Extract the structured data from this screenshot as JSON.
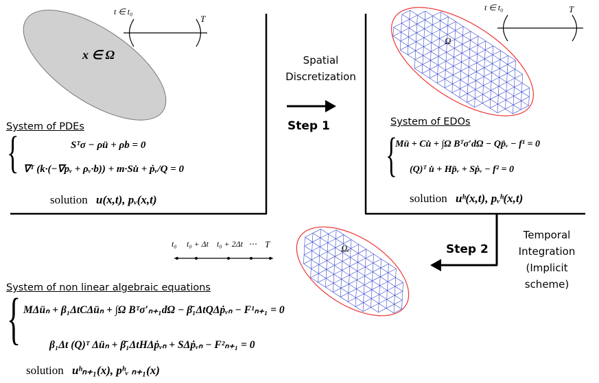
{
  "time_top_left": {
    "start": "t ∈ t₀",
    "end": "T"
  },
  "domain_label": "x ∈ Ω",
  "mesh_label_top": "Ω",
  "time_top_right": {
    "start": "t ∈ t₀",
    "end": "T"
  },
  "spatial": {
    "line1": "Spatial",
    "line2": "Discretization",
    "step": "Step 1"
  },
  "pdes": {
    "title": "System of PDEs",
    "eq1": "Sᵀσ − ρü + ρb = 0",
    "eq2": "∇ᵀ (k·(−∇pᵥ + ρᵥ·b)) + m·Su̇ + ṗᵥ/Q = 0",
    "solution_word": "solution",
    "solution_terms": "u(x,t), pᵥ(x,t)"
  },
  "edos": {
    "title": "System of  EDOs",
    "eq1": "Mü + Cu̇ + ∫Ω Bᵀσ′dΩ − Qp̄ᵥ − f¹ = 0",
    "eq2": "(Q)ᵀ u̇ + Hp̄ᵥ + Sṗᵥ − f² = 0",
    "solution_word": "solution",
    "solution_terms": "uʰ(x,t), pᵥʰ(x,t)"
  },
  "temporal": {
    "line1": "Temporal",
    "line2": "Integration",
    "line3": "(Implicit scheme)",
    "step": "Step 2"
  },
  "timeline": {
    "t0": "t₀",
    "t1": "t₀ + Δt",
    "t2": "t₀ + 2Δt",
    "dots": "⋯",
    "T": "T"
  },
  "mesh_label_bottom": "Ωₑ",
  "nonlinear": {
    "title": "System of non linear algebraic equations",
    "eq1": "MΔüₙ + β₁ΔtCΔüₙ + ∫Ω Bᵀσ′ₙ₊₁dΩ − β̄₁ΔtQΔṗᵥₙ − F¹ₙ₊₁ = 0",
    "eq2": "β₁Δt (Q)ᵀ Δüₙ + β̄₁ΔtHΔṗᵥₙ + SΔṗᵥₙ − F²ₙ₊₁ = 0",
    "solution_word": "solution",
    "solution_terms": "uʰₙ₊₁(x), pʰᵥ ₙ₊₁(x)"
  },
  "colors": {
    "mesh_blue": "#3344cc",
    "mesh_red": "#ee3333",
    "ellipse_gray": "#d0d0d0"
  }
}
